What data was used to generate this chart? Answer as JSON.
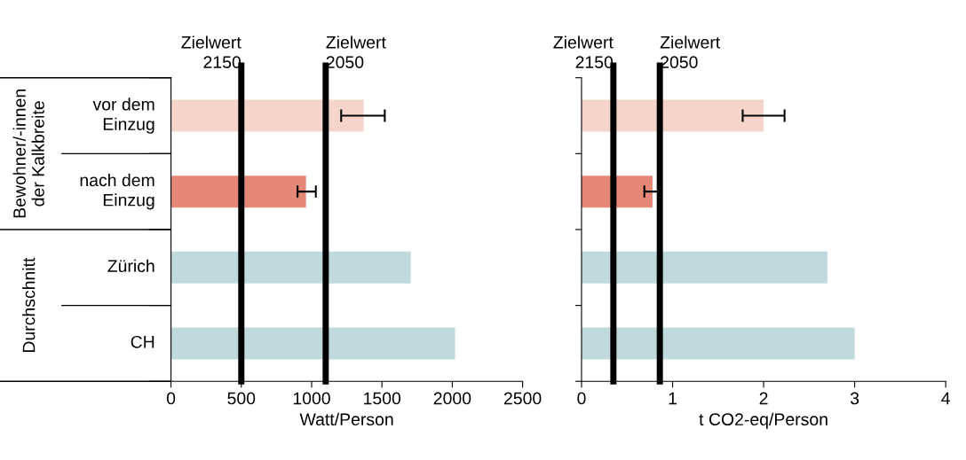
{
  "chart_data": [
    {
      "type": "bar",
      "orientation": "horizontal",
      "xlabel": "Watt/Person",
      "categories": [
        "vor dem\nEinzug",
        "nach dem\nEinzug",
        "Zürich",
        "CH"
      ],
      "values": [
        1370,
        960,
        1705,
        2020
      ],
      "colors": [
        "#f5d5c9",
        "#e58878",
        "#bfd9dd",
        "#bfd9dd"
      ],
      "errors": [
        [
          1210,
          1520
        ],
        [
          900,
          1030
        ],
        null,
        null
      ],
      "xlim": [
        0,
        2500
      ],
      "xticks": [
        0,
        500,
        1000,
        1500,
        2000,
        2500
      ],
      "ref_lines": [
        {
          "axis": "x",
          "value": 500,
          "label": "Zielwert\n2150",
          "color": "#000000"
        },
        {
          "axis": "x",
          "value": 1100,
          "label": "Zielwert\n2050",
          "color": "#000000"
        }
      ],
      "annotations": [
        "Bewohner/-innen\nder Kalkbreite",
        "Durchschnitt"
      ],
      "grid": false,
      "legend": false
    },
    {
      "type": "bar",
      "orientation": "horizontal",
      "xlabel": "t CO2-eq/Person",
      "categories": [
        null,
        null,
        null,
        null
      ],
      "values": [
        2.0,
        0.78,
        2.7,
        3.0
      ],
      "colors": [
        "#f5d5c9",
        "#e58878",
        "#bfd9dd",
        "#bfd9dd"
      ],
      "errors": [
        [
          1.77,
          2.23
        ],
        [
          0.69,
          0.84
        ],
        null,
        null
      ],
      "xlim": [
        0,
        4
      ],
      "xticks": [
        0,
        1,
        2,
        3,
        4
      ],
      "ref_lines": [
        {
          "axis": "x",
          "value": 0.35,
          "label": "Zielwert\n2150",
          "color": "#000000"
        },
        {
          "axis": "x",
          "value": 0.86,
          "label": "Zielwert\n2050",
          "color": "#000000"
        }
      ],
      "tick_labels": "x",
      "grid": false,
      "legend": false
    }
  ]
}
